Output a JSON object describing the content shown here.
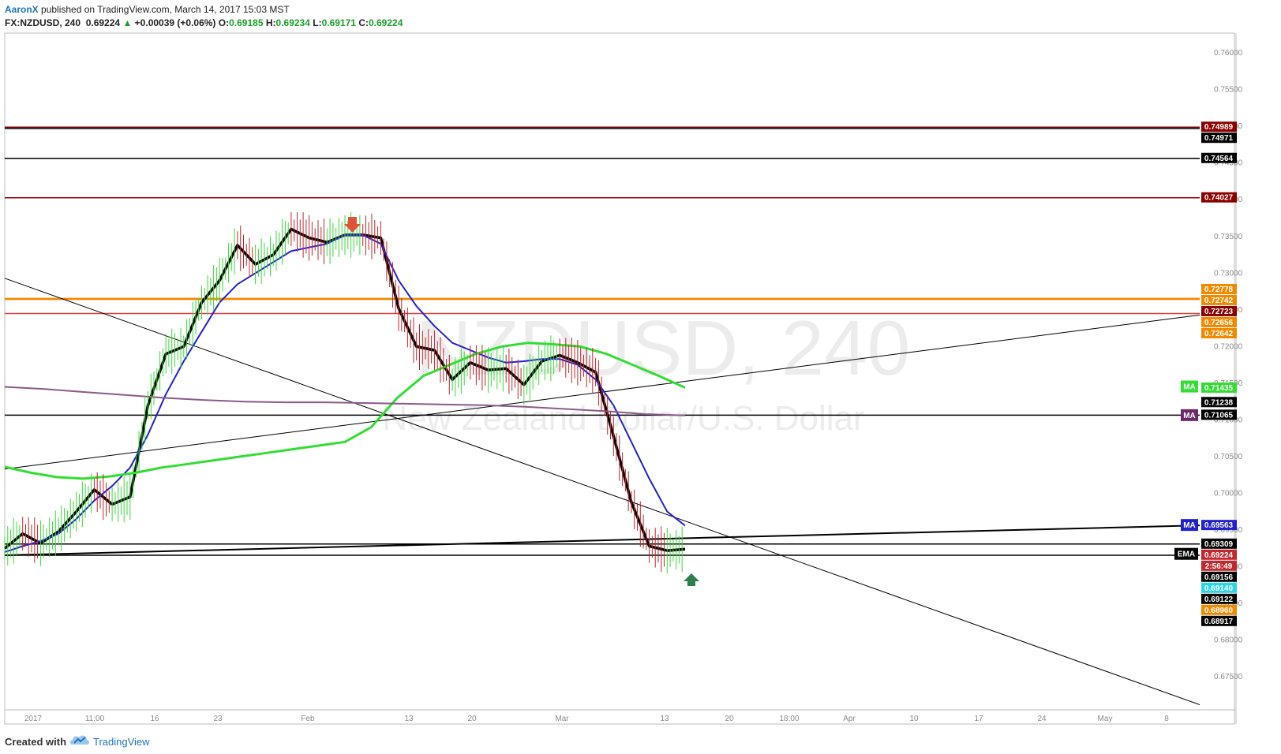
{
  "header": {
    "author": "AaronX",
    "published_text": "published on TradingView.com, March 14, 2017 15:03 MST",
    "symbol": "FX:NZDUSD, 240",
    "last": "0.69224",
    "change_arrow": "▲",
    "change": "+0.00039 (+0.06%)",
    "o_label": "O:",
    "o_value": "0.69185",
    "h_label": "H:",
    "h_value": "0.69234",
    "l_label": "L:",
    "l_value": "0.69171",
    "c_label": "C:",
    "c_value": "0.69224"
  },
  "watermark": {
    "symbol": "NZDUSD, 240",
    "description": "New Zealand Dollar/U.S. Dollar"
  },
  "footer": {
    "created_with": "Created with",
    "brand": "TradingView"
  },
  "colors": {
    "up_candle": "#3adb3a",
    "down_candle": "#c0282d",
    "ema_fast": "#000000",
    "ema_blue": "#2222cc",
    "ma_green": "#33dd33",
    "ma_purple": "#8a5a8a",
    "support_dark_red": "#8b0000",
    "support_orange": "#f08a00",
    "support_red": "#e04040",
    "accent": "#1e73be"
  },
  "chart_data": {
    "type": "line",
    "title": "",
    "ylim": [
      0.6705,
      0.7627
    ],
    "x_ticks": [
      "2017",
      "11:00",
      "16",
      "23",
      "Feb",
      "13",
      "20",
      "Mar",
      "13",
      "20",
      "18:00",
      "Apr",
      "10",
      "17",
      "24",
      "May",
      "8"
    ],
    "y_ticks": [
      "0.67500",
      "0.68000",
      "0.68500",
      "0.69000",
      "0.69500",
      "0.70000",
      "0.70500",
      "0.71000",
      "0.71500",
      "0.72000",
      "0.72500",
      "0.73000",
      "0.73500",
      "0.74000",
      "0.74500",
      "0.75000",
      "0.75500",
      "0.76000"
    ],
    "horizontal_levels": [
      {
        "value": 0.74989,
        "color": "#8b0000",
        "label": "0.74989"
      },
      {
        "value": 0.74971,
        "color": "#000000",
        "label": "0.74971"
      },
      {
        "value": 0.74564,
        "color": "#000000",
        "label": "0.74564"
      },
      {
        "value": 0.74027,
        "color": "#8b0000",
        "label": "0.74027"
      },
      {
        "value": 0.72656,
        "color": "#f08a00",
        "label": "0.72656"
      },
      {
        "value": 0.72642,
        "color": "#f08a00",
        "label": "0.72642"
      },
      {
        "value": 0.7245,
        "color": "#e04040",
        "label": ""
      },
      {
        "value": 0.71065,
        "color": "#000000",
        "label": "0.71065"
      },
      {
        "value": 0.69309,
        "color": "#000000",
        "label": "0.69309"
      },
      {
        "value": 0.69156,
        "color": "#000000",
        "label": "0.69156"
      }
    ],
    "price_labels": [
      {
        "value": 0.74989,
        "text": "0.74989",
        "bg": "#8b0000",
        "fg": "#ffffff"
      },
      {
        "value": 0.74971,
        "text": "0.74971",
        "bg": "#000000",
        "fg": "#ffffff"
      },
      {
        "value": 0.74564,
        "text": "0.74564",
        "bg": "#000000",
        "fg": "#ffffff"
      },
      {
        "value": 0.74027,
        "text": "0.74027",
        "bg": "#8b0000",
        "fg": "#ffffff"
      },
      {
        "value": 0.72778,
        "text": "0.72778",
        "bg": "#f08a00",
        "fg": "#ffffff"
      },
      {
        "value": 0.72742,
        "text": "0.72742",
        "bg": "#f08a00",
        "fg": "#ffffff"
      },
      {
        "value": 0.72723,
        "text": "0.72723",
        "bg": "#8b0000",
        "fg": "#ffffff"
      },
      {
        "value": 0.72656,
        "text": "0.72656",
        "bg": "#f08a00",
        "fg": "#ffffff"
      },
      {
        "value": 0.72642,
        "text": "0.72642",
        "bg": "#f08a00",
        "fg": "#ffffff"
      },
      {
        "value": 0.71435,
        "text": "0.71435",
        "bg": "#33dd33",
        "fg": "#ffffff"
      },
      {
        "value": 0.71238,
        "text": "0.71238",
        "bg": "#000000",
        "fg": "#ffffff"
      },
      {
        "value": 0.71065,
        "text": "0.71065",
        "bg": "#000000",
        "fg": "#ffffff"
      },
      {
        "value": 0.69563,
        "text": "0.69563",
        "bg": "#2222cc",
        "fg": "#ffffff"
      },
      {
        "value": 0.69309,
        "text": "0.69309",
        "bg": "#000000",
        "fg": "#ffffff"
      },
      {
        "value": 0.69224,
        "text": "0.69224",
        "bg": "#c0282d",
        "fg": "#ffffff"
      },
      {
        "value": 0.691,
        "text": "2:56:49",
        "bg": "#c0282d",
        "fg": "#ffffff"
      },
      {
        "value": 0.69156,
        "text": "0.69156",
        "bg": "#000000",
        "fg": "#ffffff"
      },
      {
        "value": 0.6914,
        "text": "0.69140",
        "bg": "#2dd3e8",
        "fg": "#ffffff"
      },
      {
        "value": 0.69122,
        "text": "0.69122",
        "bg": "#000000",
        "fg": "#ffffff"
      },
      {
        "value": 0.6896,
        "text": "0.68960",
        "bg": "#f08a00",
        "fg": "#ffffff"
      },
      {
        "value": 0.68917,
        "text": "0.68917",
        "bg": "#000000",
        "fg": "#ffffff"
      }
    ],
    "indicator_tags": [
      {
        "text": "MA",
        "value": 0.7145,
        "bg": "#33dd33"
      },
      {
        "text": "MA",
        "value": 0.7106,
        "bg": "#6a2a6a"
      },
      {
        "text": "MA",
        "value": 0.69563,
        "bg": "#2222cc"
      },
      {
        "text": "EMA",
        "value": 0.6917,
        "bg": "#000000"
      }
    ],
    "series": [
      {
        "name": "",
        "color": "#000000",
        "values": [
          0.6925,
          0.6945,
          0.6932,
          0.6948,
          0.6975,
          0.7005,
          0.6985,
          0.6995,
          0.712,
          0.719,
          0.72,
          0.726,
          0.729,
          0.7338,
          0.7312,
          0.7325,
          0.736,
          0.7348,
          0.7342,
          0.7352,
          0.7352,
          0.7348,
          0.7252,
          0.72,
          0.7195,
          0.7155,
          0.7178,
          0.7168,
          0.717,
          0.7148,
          0.718,
          0.7188,
          0.7178,
          0.7165,
          0.7078,
          0.6988,
          0.6928,
          0.6922,
          0.6924
        ]
      },
      {
        "name": "",
        "color": "#2222cc",
        "values": [
          0.692,
          0.6928,
          0.6935,
          0.6945,
          0.6965,
          0.699,
          0.701,
          0.7035,
          0.708,
          0.7135,
          0.718,
          0.722,
          0.726,
          0.7285,
          0.73,
          0.7315,
          0.733,
          0.7335,
          0.734,
          0.7352,
          0.7352,
          0.734,
          0.729,
          0.7255,
          0.7228,
          0.7205,
          0.7195,
          0.7185,
          0.7178,
          0.718,
          0.7183,
          0.7183,
          0.7175,
          0.7155,
          0.712,
          0.707,
          0.702,
          0.6975,
          0.6956
        ]
      },
      {
        "name": "",
        "color": "#33dd33",
        "values": [
          0.7036,
          0.7028,
          0.7022,
          0.702,
          0.7023,
          0.7028,
          0.7035,
          0.704,
          0.7045,
          0.705,
          0.7055,
          0.706,
          0.7065,
          0.707,
          0.709,
          0.713,
          0.716,
          0.7175,
          0.719,
          0.72,
          0.7205,
          0.7203,
          0.72,
          0.719,
          0.7175,
          0.716,
          0.7144
        ]
      },
      {
        "name": "",
        "color": "#8a5a8a",
        "values": [
          0.7145,
          0.7142,
          0.7138,
          0.7134,
          0.713,
          0.7127,
          0.7125,
          0.7124,
          0.7124,
          0.7123,
          0.7122,
          0.7121,
          0.712,
          0.7118,
          0.7115,
          0.7112,
          0.7108,
          0.7106
        ]
      }
    ],
    "trendlines": [
      {
        "from": [
          0,
          0.69156
        ],
        "to": [
          1,
          0.69563
        ],
        "color": "#000000",
        "width": 2
      },
      {
        "from": [
          0,
          0.7033
        ],
        "to": [
          1,
          0.7243
        ],
        "color": "#000000",
        "width": 1
      },
      {
        "from": [
          0,
          0.7293
        ],
        "to": [
          1,
          0.6712
        ],
        "color": "#000000",
        "width": 1
      }
    ]
  }
}
